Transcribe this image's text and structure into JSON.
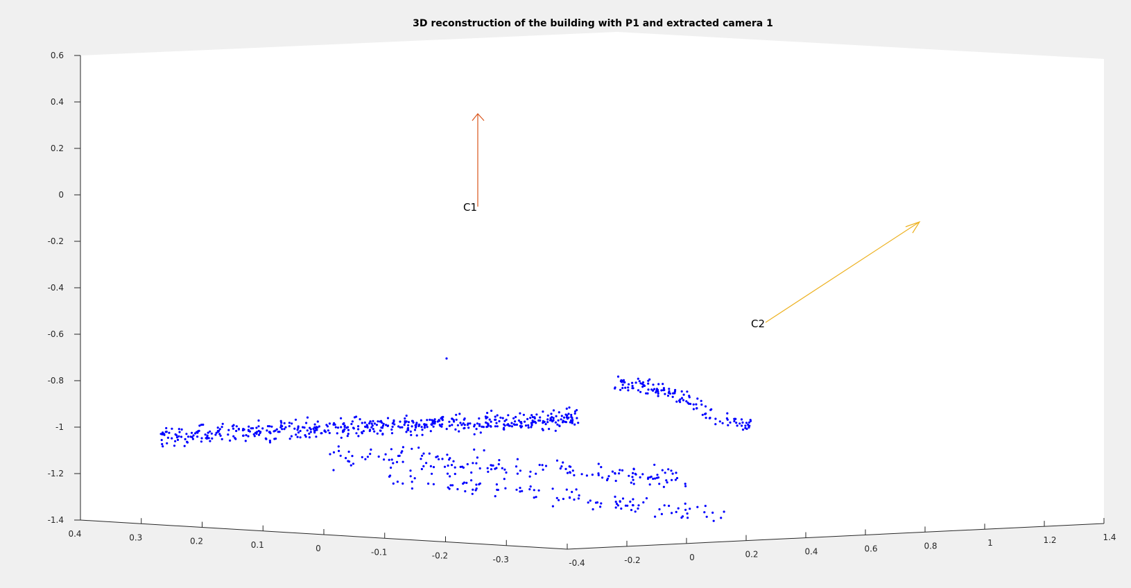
{
  "chart_data": {
    "type": "scatter",
    "title": "3D reconstruction of the building with P1 and extracted camera 1",
    "view": "3d",
    "zlim": [
      -1.4,
      0.6
    ],
    "z_ticks": [
      "0.6",
      "0.4",
      "0.2",
      "0",
      "-0.2",
      "-0.4",
      "-0.6",
      "-0.8",
      "-1",
      "-1.2",
      "-1.4"
    ],
    "xlim": [
      -0.4,
      0.4
    ],
    "x_ticks": [
      "0.4",
      "0.3",
      "0.2",
      "0.1",
      "0",
      "-0.1",
      "-0.2",
      "-0.3"
    ],
    "ylim": [
      -0.4,
      1.4
    ],
    "y_ticks": [
      "-0.4",
      "-0.2",
      "0",
      "0.2",
      "0.4",
      "0.6",
      "0.8",
      "1",
      "1.2",
      "1.4"
    ],
    "colors": {
      "points": "#0000ff",
      "camera1": "#d95319",
      "camera2": "#edb120",
      "axes": "#262626"
    },
    "cameras": [
      {
        "name": "C1",
        "color": "#d95319"
      },
      {
        "name": "C2",
        "color": "#edb120"
      }
    ],
    "point_clusters": [
      {
        "name": "main-facade-band",
        "n": 520,
        "z_center": -0.98,
        "z_spread": 0.04
      },
      {
        "name": "lower-facade-band",
        "n": 160,
        "z_center": -1.1,
        "z_spread": 0.05
      },
      {
        "name": "right-wing-cluster",
        "n": 130,
        "z_center": -0.9,
        "z_spread": 0.03
      },
      {
        "name": "ground-row",
        "n": 110,
        "z_center": -1.33,
        "z_spread": 0.04
      }
    ]
  }
}
